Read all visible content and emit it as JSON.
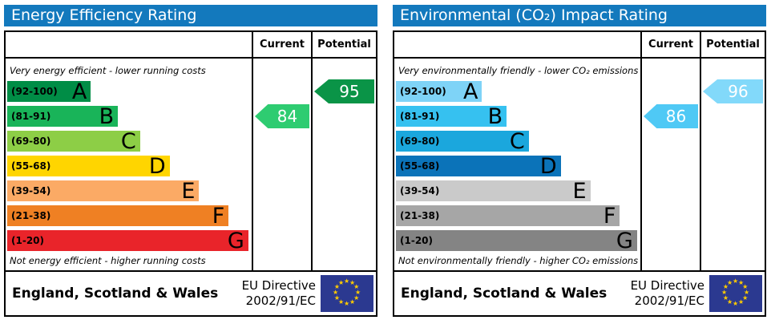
{
  "colors": {
    "titlebar": "#1379bd",
    "border": "#000000",
    "flag_blue": "#2b3990",
    "flag_star": "#ffcc00"
  },
  "chart_data": [
    {
      "type": "bar",
      "title": "Energy Efficiency Rating",
      "categories": [
        "A (92-100)",
        "B (81-91)",
        "C (69-80)",
        "D (55-68)",
        "E (39-54)",
        "F (21-38)",
        "G (1-20)"
      ],
      "band_width_pct": [
        34,
        45,
        54,
        66,
        78,
        90,
        98
      ],
      "current": 84,
      "current_band": "B",
      "potential": 95,
      "potential_band": "A",
      "note_top": "Very energy efficient - lower running costs",
      "note_bottom": "Not energy efficient - higher running costs"
    },
    {
      "type": "bar",
      "title": "Environmental (CO₂) Impact Rating",
      "categories": [
        "A (92-100)",
        "B (81-91)",
        "C (69-80)",
        "D (55-68)",
        "E (39-54)",
        "F (21-38)",
        "G (1-20)"
      ],
      "band_width_pct": [
        35,
        45,
        54,
        67,
        79,
        91,
        98
      ],
      "current": 86,
      "current_band": "B",
      "potential": 96,
      "potential_band": "A",
      "note_top": "Very environmentally friendly - lower CO₂ emissions",
      "note_bottom": "Not environmentally friendly - higher CO₂ emissions"
    }
  ],
  "panels": [
    {
      "title": "Energy Efficiency Rating",
      "columns": {
        "current": "Current",
        "potential": "Potential"
      },
      "top_note": "Very energy efficient - lower running costs",
      "bottom_note": "Not energy efficient - higher running costs",
      "bands": [
        {
          "range": "(92-100)",
          "letter": "A",
          "color": "#008d46",
          "width_pct": 34
        },
        {
          "range": "(81-91)",
          "letter": "B",
          "color": "#19b459",
          "width_pct": 45
        },
        {
          "range": "(69-80)",
          "letter": "C",
          "color": "#8dce46",
          "width_pct": 54
        },
        {
          "range": "(55-68)",
          "letter": "D",
          "color": "#ffd500",
          "width_pct": 66
        },
        {
          "range": "(39-54)",
          "letter": "E",
          "color": "#fbaa65",
          "width_pct": 78
        },
        {
          "range": "(21-38)",
          "letter": "F",
          "color": "#ef8023",
          "width_pct": 90
        },
        {
          "range": "(1-20)",
          "letter": "G",
          "color": "#e9242a",
          "width_pct": 98
        }
      ],
      "current": {
        "value": "84",
        "color": "#2ecc71",
        "band_index": 1
      },
      "potential": {
        "value": "95",
        "color": "#0a9447",
        "band_index": 0
      },
      "footer": {
        "region": "England, Scotland & Wales",
        "directive_line1": "EU Directive",
        "directive_line2": "2002/91/EC"
      }
    },
    {
      "title": "Environmental (CO₂) Impact Rating",
      "columns": {
        "current": "Current",
        "potential": "Potential"
      },
      "top_note": "Very environmentally friendly - lower CO₂ emissions",
      "bottom_note": "Not environmentally friendly - higher CO₂ emissions",
      "bands": [
        {
          "range": "(92-100)",
          "letter": "A",
          "color": "#7ed3f7",
          "width_pct": 35
        },
        {
          "range": "(81-91)",
          "letter": "B",
          "color": "#36c1f0",
          "width_pct": 45
        },
        {
          "range": "(69-80)",
          "letter": "C",
          "color": "#1ba7dd",
          "width_pct": 54
        },
        {
          "range": "(55-68)",
          "letter": "D",
          "color": "#0b73b9",
          "width_pct": 67
        },
        {
          "range": "(39-54)",
          "letter": "E",
          "color": "#cacaca",
          "width_pct": 79
        },
        {
          "range": "(21-38)",
          "letter": "F",
          "color": "#a6a6a6",
          "width_pct": 91
        },
        {
          "range": "(1-20)",
          "letter": "G",
          "color": "#848484",
          "width_pct": 98
        }
      ],
      "current": {
        "value": "86",
        "color": "#4fc9f5",
        "band_index": 1
      },
      "potential": {
        "value": "96",
        "color": "#82d9fa",
        "band_index": 0
      },
      "footer": {
        "region": "England, Scotland & Wales",
        "directive_line1": "EU Directive",
        "directive_line2": "2002/91/EC"
      }
    }
  ]
}
